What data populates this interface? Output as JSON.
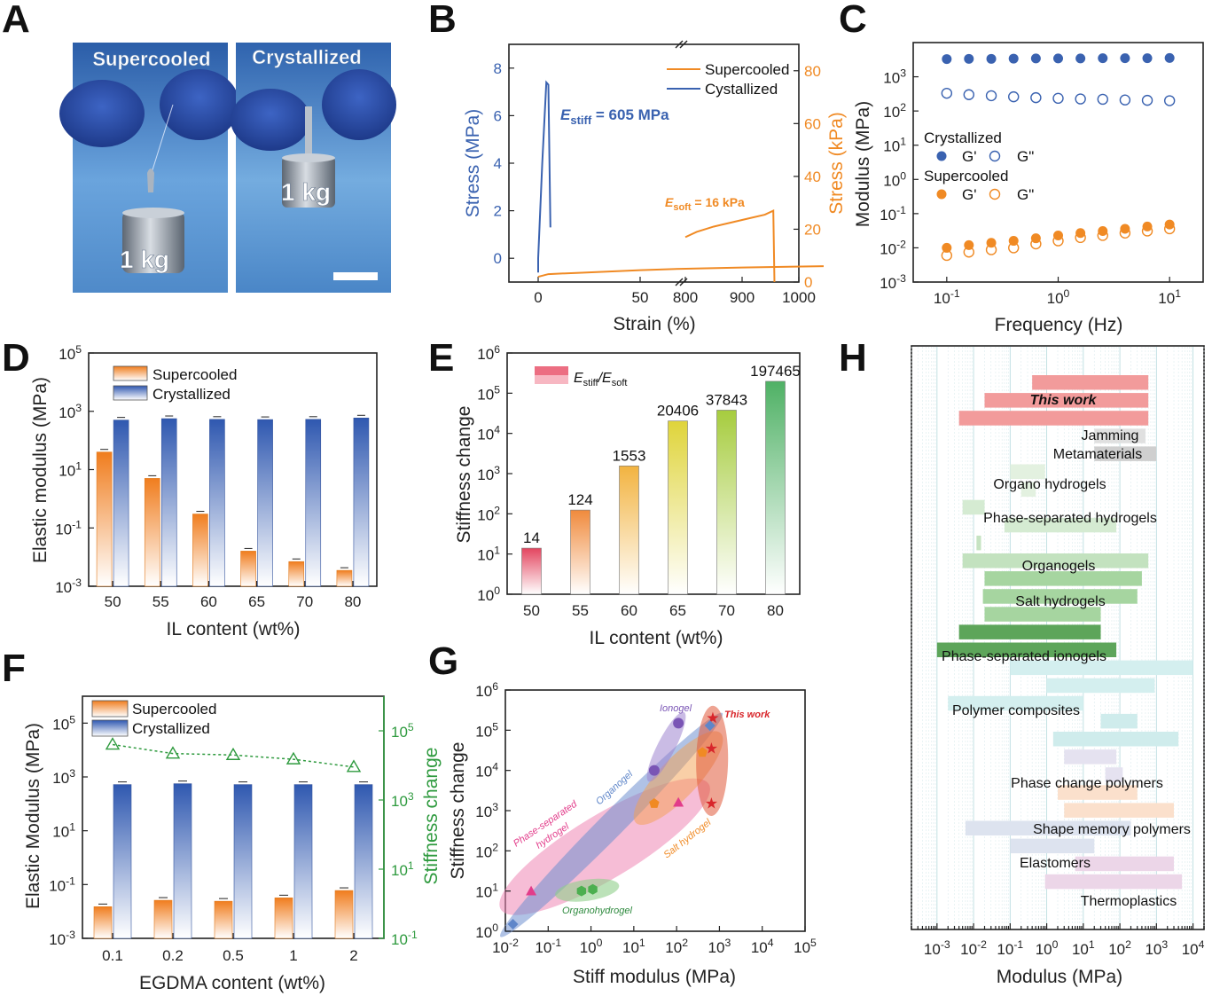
{
  "panel_labels": [
    "A",
    "B",
    "C",
    "D",
    "E",
    "F",
    "G",
    "H"
  ],
  "panel_a": {
    "left_caption": "Supercooled",
    "right_caption": "Crystallized",
    "left_weight": "1 kg",
    "right_weight": "1 kg",
    "colors": {
      "bg": "#4f86c8",
      "glove": "#2f4fae",
      "metal": "#9aa6b4"
    }
  },
  "chart_data": [
    {
      "panel": "B",
      "type": "line",
      "xlabel": "Strain (%)",
      "ylabel": "Stress (MPa)",
      "ylabel_right": "Stress (kPa)",
      "x_ticks_left": [
        "0",
        "50",
        "800"
      ],
      "x_ticks_right": [
        "900",
        "1000"
      ],
      "y_ticks_left": [
        "0",
        "2",
        "4",
        "6",
        "8"
      ],
      "y_ticks_right": [
        "0",
        "20",
        "40",
        "60",
        "80"
      ],
      "ylim_left": [
        -1,
        9
      ],
      "ylim_right": [
        0,
        90
      ],
      "series": [
        {
          "name": "Supercooled",
          "color": "#f08a24",
          "axis": "right",
          "points_segment1": [
            [
              0,
              2
            ],
            [
              5,
              3
            ],
            [
              20,
              3.5
            ],
            [
              50,
              4.5
            ],
            [
              70,
              5
            ],
            [
              100,
              5.5
            ],
            [
              140,
              6
            ]
          ],
          "points_segment2": [
            [
              800,
              17
            ],
            [
              820,
              19
            ],
            [
              850,
              21
            ],
            [
              880,
              22.5
            ],
            [
              910,
              24
            ],
            [
              940,
              25.5
            ],
            [
              955,
              27
            ],
            [
              957,
              0
            ]
          ]
        },
        {
          "name": "Cystallized",
          "color": "#3a62b0",
          "axis": "left",
          "points": [
            [
              0,
              -0.6
            ],
            [
              0,
              0
            ],
            [
              2,
              4
            ],
            [
              4,
              7.4
            ],
            [
              5,
              7.3
            ],
            [
              6,
              1.3
            ]
          ]
        }
      ],
      "annotations": [
        {
          "text": "E",
          "sub": "stiff",
          "rest": " = 605 MPa",
          "color": "#3a62b0"
        },
        {
          "text": "E",
          "sub": "soft",
          "rest": " = 16 kPa",
          "color": "#f08a24"
        }
      ]
    },
    {
      "panel": "C",
      "type": "scatter",
      "xlabel": "Frequency (Hz)",
      "ylabel": "Modulus (MPa)",
      "xscale": "log",
      "yscale": "log",
      "xlim": [
        0.05,
        20
      ],
      "ylim": [
        0.001,
        10000
      ],
      "x_ticks": [
        "10^-1",
        "10^0",
        "10^1"
      ],
      "y_ticks": [
        "10^-3",
        "10^-2",
        "10^-1",
        "10^0",
        "10^1",
        "10^2",
        "10^3"
      ],
      "x": [
        0.1,
        0.158,
        0.251,
        0.398,
        0.631,
        1.0,
        1.585,
        2.512,
        3.981,
        6.31,
        10.0
      ],
      "series": [
        {
          "name": "G'",
          "group": "Crystallized",
          "color": "#3a62b0",
          "filled": true,
          "values": [
            3300,
            3350,
            3350,
            3400,
            3450,
            3450,
            3450,
            3500,
            3500,
            3500,
            3550
          ]
        },
        {
          "name": "G\"",
          "group": "Crystallized",
          "color": "#3a62b0",
          "filled": false,
          "values": [
            330,
            300,
            280,
            260,
            245,
            235,
            225,
            220,
            210,
            205,
            200
          ]
        },
        {
          "name": "G'",
          "group": "Supercooled",
          "color": "#f08a24",
          "filled": true,
          "values": [
            0.01,
            0.012,
            0.014,
            0.016,
            0.019,
            0.023,
            0.027,
            0.031,
            0.036,
            0.042,
            0.048
          ]
        },
        {
          "name": "G\"",
          "group": "Supercooled",
          "color": "#f08a24",
          "filled": false,
          "values": [
            0.006,
            0.0075,
            0.0088,
            0.01,
            0.013,
            0.016,
            0.02,
            0.023,
            0.027,
            0.031,
            0.036
          ]
        }
      ],
      "legend_groups": [
        "Crystallized",
        "Supercooled"
      ]
    },
    {
      "panel": "D",
      "type": "bar",
      "xlabel": "IL content (wt%)",
      "ylabel": "Elastic modulus (MPa)",
      "yscale": "log",
      "ylim": [
        0.001,
        100000
      ],
      "y_ticks": [
        "10^-3",
        "10^-1",
        "10^1",
        "10^3",
        "10^5"
      ],
      "categories": [
        "50",
        "55",
        "60",
        "65",
        "70",
        "80"
      ],
      "series": [
        {
          "name": "Supercooled",
          "color": "#f08a24",
          "values": [
            40,
            5,
            0.3,
            0.016,
            0.007,
            0.0035
          ]
        },
        {
          "name": "Crystallized",
          "color": "#3a62b0",
          "values": [
            500,
            560,
            530,
            520,
            530,
            590
          ]
        }
      ]
    },
    {
      "panel": "E",
      "type": "bar",
      "xlabel": "IL content (wt%)",
      "ylabel": "Stiffness change",
      "yscale": "log",
      "ylim": [
        1,
        1000000
      ],
      "y_ticks": [
        "10^0",
        "10^1",
        "10^2",
        "10^3",
        "10^4",
        "10^5",
        "10^6"
      ],
      "categories": [
        "50",
        "55",
        "60",
        "65",
        "70",
        "80"
      ],
      "values": [
        14,
        124,
        1553,
        20406,
        37843,
        197465
      ],
      "data_labels": [
        "14",
        "124",
        "1553",
        "20406",
        "37843",
        "197465"
      ],
      "bar_colors": [
        "#e3455f",
        "#f08a3c",
        "#f2b340",
        "#dfd43a",
        "#a6cc3e",
        "#4fb165"
      ],
      "legend": {
        "name": "E",
        "sub1": "stiff",
        "slash": "/E",
        "sub2": "soft"
      }
    },
    {
      "panel": "F",
      "type": "bar",
      "xlabel": "EGDMA content (wt%)",
      "ylabel": "Elastic Modulus (MPa)",
      "ylabel_right": "Stiffness change",
      "yscale": "log",
      "ylim": [
        0.001,
        1000000
      ],
      "y_ticks": [
        "10^-3",
        "10^-1",
        "10^1",
        "10^3",
        "10^5"
      ],
      "y_ticks_right": [
        "10^-1",
        "10^1",
        "10^3",
        "10^5"
      ],
      "ylim_right": [
        0.1,
        1000000
      ],
      "categories": [
        "0.1",
        "0.2",
        "0.5",
        "1",
        "2"
      ],
      "series": [
        {
          "name": "Supercooled",
          "color": "#f08a24",
          "values": [
            0.015,
            0.026,
            0.024,
            0.032,
            0.06
          ]
        },
        {
          "name": "Crystallized",
          "color": "#3a62b0",
          "values": [
            520,
            560,
            520,
            520,
            520
          ]
        },
        {
          "name": "Stiffness change",
          "color": "#2e9a3e",
          "axis": "right",
          "values": [
            40000,
            22000,
            20000,
            15000,
            9000
          ]
        }
      ]
    },
    {
      "panel": "G",
      "type": "scatter",
      "xlabel": "Stiff modulus (MPa)",
      "ylabel": "Stiffness change",
      "xscale": "log",
      "yscale": "log",
      "xlim": [
        0.01,
        100000
      ],
      "ylim": [
        1,
        1000000
      ],
      "x_ticks": [
        "10^-2",
        "10^-1",
        "10^0",
        "10^1",
        "10^2",
        "10^3",
        "10^4",
        "10^5"
      ],
      "y_ticks": [
        "10^0",
        "10^1",
        "10^2",
        "10^3",
        "10^4",
        "10^5",
        "10^6"
      ],
      "groups": [
        {
          "name": "Ionogel",
          "color": "#7a55b5",
          "marker": "circle",
          "points": [
            [
              30,
              10000
            ],
            [
              110,
              150000
            ]
          ]
        },
        {
          "name": "This work",
          "color": "#d8262b",
          "marker": "star",
          "points": [
            [
              650,
              1500
            ],
            [
              650,
              35000
            ],
            [
              700,
              200000
            ]
          ]
        },
        {
          "name": "Organogel",
          "color": "#5f86c9",
          "marker": "diamond",
          "points": [
            [
              0.015,
              1.5
            ],
            [
              600,
              130000
            ]
          ]
        },
        {
          "name": "Salt hydrogel",
          "color": "#f08a24",
          "marker": "pentagon",
          "points": [
            [
              30,
              1500
            ],
            [
              400,
              28000
            ]
          ]
        },
        {
          "name": "Phase-separated hydrogel",
          "color": "#e23c8a",
          "marker": "triangle",
          "points": [
            [
              0.04,
              10
            ],
            [
              110,
              1600
            ]
          ]
        },
        {
          "name": "Organohydrogel",
          "color": "#4caf50",
          "marker": "hexagon",
          "points": [
            [
              0.6,
              10
            ],
            [
              1.1,
              11
            ]
          ]
        }
      ]
    },
    {
      "panel": "H",
      "type": "bar",
      "xlabel": "Modulus (MPa)",
      "xscale": "log",
      "xlim": [
        0.0002,
        20000
      ],
      "x_ticks": [
        "10^-3",
        "10^-2",
        "10^-1",
        "10^0",
        "10^1",
        "10^2",
        "10^3",
        "10^4"
      ],
      "ranges": [
        {
          "label": "This work",
          "color": "#f29b9b",
          "rows": [
            [
              0.4,
              600
            ],
            [
              0.02,
              600
            ],
            [
              0.004,
              600
            ]
          ]
        },
        {
          "label": "Jamming",
          "color": "#e0e0e0",
          "rows": [
            [
              20,
              500
            ]
          ]
        },
        {
          "label": "Metamaterials",
          "color": "#cfcfcf",
          "rows": [
            [
              20,
              1000
            ]
          ]
        },
        {
          "label": "Organo hydrogels",
          "color": "#e3f1e0",
          "rows": [
            [
              0.1,
              0.9
            ],
            [
              0.2,
              0.5
            ]
          ]
        },
        {
          "label": "Phase-separated hydrogels",
          "color": "#d5ebd2",
          "rows": [
            [
              0.005,
              0.02
            ],
            [
              0.07,
              80
            ]
          ]
        },
        {
          "label": "",
          "color": "#c6e3c2",
          "rows": [
            [
              0.012,
              0.016
            ]
          ]
        },
        {
          "label": "Organogels",
          "color": "#c3e2bf",
          "rows": [
            [
              0.005,
              600
            ]
          ]
        },
        {
          "label": "Salt hydrogels",
          "color": "#a6d5a0",
          "rows": [
            [
              0.02,
              400
            ],
            [
              0.018,
              300
            ],
            [
              0.02,
              30
            ]
          ]
        },
        {
          "label": "Phase-separated ionogels",
          "color": "#5da55a",
          "rows": [
            [
              0.004,
              30
            ],
            [
              0.001,
              80
            ]
          ]
        },
        {
          "label": "Polymer composites",
          "color": "#d4efef",
          "rows": [
            [
              0.1,
              10000
            ],
            [
              1,
              900
            ],
            [
              0.002,
              10
            ]
          ]
        },
        {
          "label": "",
          "color": "#cfecec",
          "rows": [
            [
              30,
              300
            ],
            [
              1.5,
              4000
            ]
          ]
        },
        {
          "label": "Phase change polymers",
          "color": "#e5e2f0",
          "rows": [
            [
              3,
              80
            ],
            [
              40,
              120
            ]
          ]
        },
        {
          "label": "Shape memory polymers",
          "color": "#fbe0cc",
          "rows": [
            [
              2,
              300
            ],
            [
              3,
              3000
            ]
          ]
        },
        {
          "label": "Elastomers",
          "color": "#dde3ef",
          "rows": [
            [
              0.006,
              200
            ],
            [
              0.1,
              20
            ]
          ]
        },
        {
          "label": "Thermoplastics",
          "color": "#ecd6e8",
          "rows": [
            [
              6,
              3000
            ],
            [
              0.9,
              5000
            ]
          ]
        }
      ]
    }
  ]
}
